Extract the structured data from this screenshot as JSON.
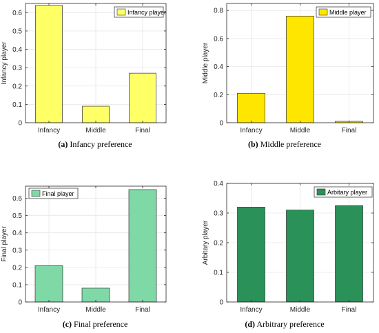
{
  "chart_data": [
    {
      "type": "bar",
      "categories": [
        "Infancy",
        "Middle",
        "Final"
      ],
      "values": [
        0.64,
        0.09,
        0.27
      ],
      "ylabel": "Infancy player",
      "legend": "Infancy player",
      "legend_position": "top-right",
      "ylim": [
        0,
        0.65
      ],
      "yticks": [
        "0",
        "0.1",
        "0.2",
        "0.3",
        "0.4",
        "0.5",
        "0.6"
      ],
      "grid": true,
      "color": "#ffff66",
      "caption_label": "(a)",
      "caption_text": "Infancy preference"
    },
    {
      "type": "bar",
      "categories": [
        "Infancy",
        "Middle",
        "Final"
      ],
      "values": [
        0.21,
        0.76,
        0.01
      ],
      "ylabel": "Middle player",
      "legend": "Middle player",
      "legend_position": "top-right",
      "ylim": [
        0,
        0.85
      ],
      "yticks": [
        "0",
        "0.2",
        "0.4",
        "0.6",
        "0.8"
      ],
      "grid": true,
      "color": "#ffe600",
      "caption_label": "(b)",
      "caption_text": "Middle preference"
    },
    {
      "type": "bar",
      "categories": [
        "Infancy",
        "Middle",
        "Final"
      ],
      "values": [
        0.21,
        0.08,
        0.65
      ],
      "ylabel": "Final player",
      "legend": "Final player",
      "legend_position": "top-left",
      "ylim": [
        0,
        0.67
      ],
      "yticks": [
        "0",
        "0.1",
        "0.2",
        "0.3",
        "0.4",
        "0.5",
        "0.6"
      ],
      "grid": true,
      "color": "#7ed9a6",
      "caption_label": "(c)",
      "caption_text": "Final preference"
    },
    {
      "type": "bar",
      "categories": [
        "Infancy",
        "Middle",
        "Final"
      ],
      "values": [
        0.32,
        0.31,
        0.325
      ],
      "ylabel": "Arbitary player",
      "legend": "Arbitary player",
      "legend_position": "top-right",
      "ylim": [
        0,
        0.4
      ],
      "yticks": [
        "0",
        "0.1",
        "0.2",
        "0.3",
        "0.4"
      ],
      "grid": true,
      "color": "#2a9158",
      "caption_label": "(d)",
      "caption_text": "Arbitrary preference"
    }
  ]
}
